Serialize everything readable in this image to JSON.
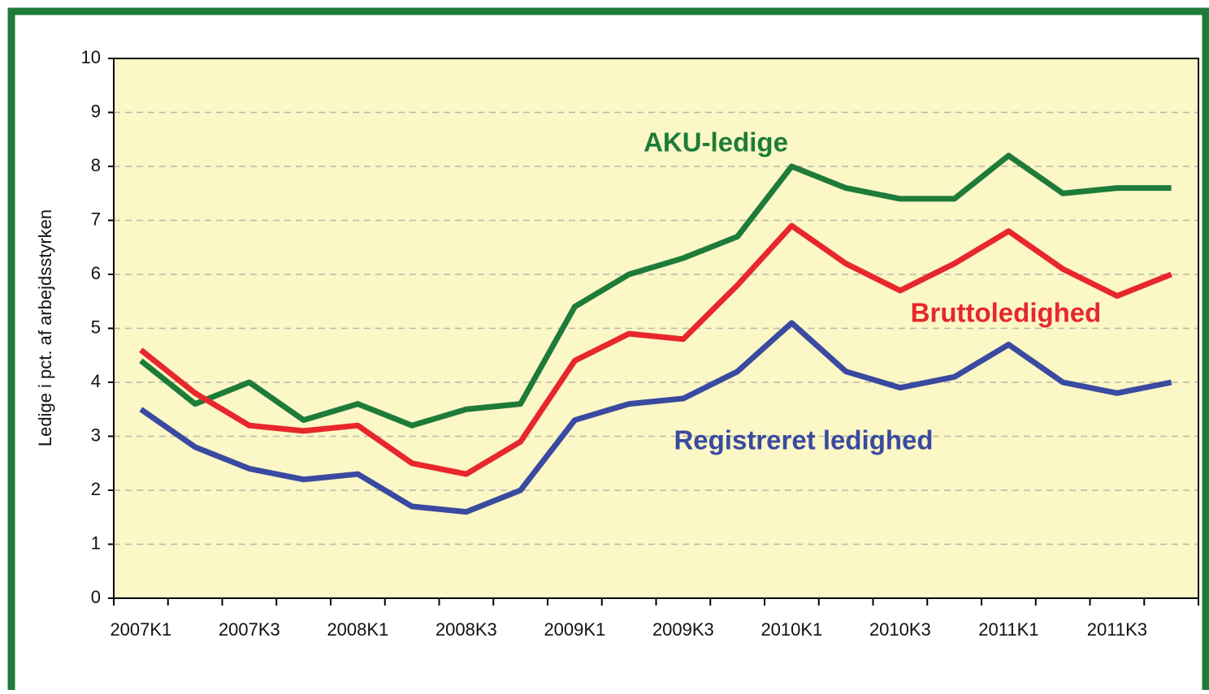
{
  "chart_data": {
    "type": "line",
    "ylabel": "Ledige i pct. af arbejdsstyrken",
    "categories": [
      "2007K1",
      null,
      "2007K3",
      null,
      "2008K1",
      null,
      "2008K3",
      null,
      "2009K1",
      null,
      "2009K3",
      null,
      "2010K1",
      null,
      "2010K3",
      null,
      "2011K1",
      null,
      "2011K3",
      null
    ],
    "series": [
      {
        "name": "AKU-ledige",
        "color": "#1e7b3a",
        "values": [
          4.4,
          3.6,
          4.0,
          3.3,
          3.6,
          3.2,
          3.5,
          3.6,
          5.4,
          6.0,
          6.3,
          6.7,
          8.0,
          7.6,
          7.4,
          7.4,
          8.2,
          7.5,
          7.6,
          7.6
        ]
      },
      {
        "name": "Bruttoledighed",
        "color": "#e8272d",
        "values": [
          4.6,
          3.8,
          3.2,
          3.1,
          3.2,
          2.5,
          2.3,
          2.9,
          4.4,
          4.9,
          4.8,
          5.8,
          6.9,
          6.2,
          5.7,
          6.2,
          6.8,
          6.1,
          5.6,
          6.0
        ]
      },
      {
        "name": "Registreret ledighed",
        "color": "#3a4aa0",
        "values": [
          3.5,
          2.8,
          2.4,
          2.2,
          2.3,
          1.7,
          1.6,
          2.0,
          3.3,
          3.6,
          3.7,
          4.2,
          5.1,
          4.2,
          3.9,
          4.1,
          4.7,
          4.0,
          3.8,
          4.0
        ]
      }
    ],
    "ylim": [
      0,
      10
    ],
    "yticks": [
      0,
      1,
      2,
      3,
      4,
      5,
      6,
      7,
      8,
      9,
      10
    ],
    "grid": true
  }
}
